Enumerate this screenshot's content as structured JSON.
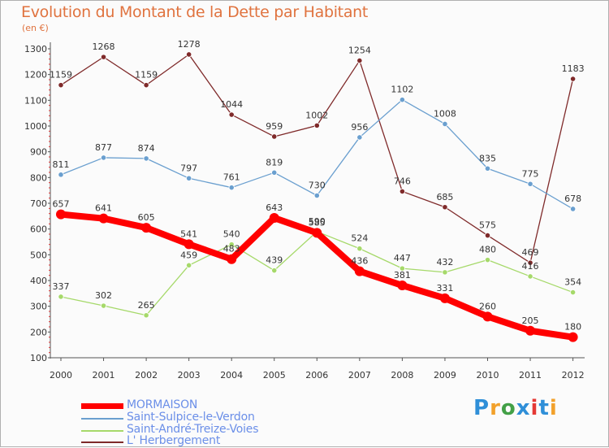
{
  "title": "Evolution du Montant de la Dette par Habitant",
  "unit": "(en €)",
  "logo": {
    "text": "Proxiti",
    "colors": [
      "#2f8fd8",
      "#f2a12b",
      "#43a047",
      "#2f8fd8",
      "#e53935",
      "#2f8fd8",
      "#f2a12b"
    ]
  },
  "chart_data": {
    "type": "line",
    "x": [
      "2000",
      "2001",
      "2002",
      "2003",
      "2004",
      "2005",
      "2006",
      "2007",
      "2008",
      "2009",
      "2010",
      "2011",
      "2012"
    ],
    "ylim": [
      100,
      1300
    ],
    "yticks": [
      100,
      200,
      300,
      400,
      500,
      600,
      700,
      800,
      900,
      1000,
      1100,
      1200,
      1300
    ],
    "grid": false,
    "legend_position": "bottom-left",
    "series": [
      {
        "name": "MORMAISON",
        "color": "#ff0000",
        "values": [
          657,
          641,
          605,
          541,
          483,
          643,
          585,
          436,
          381,
          331,
          260,
          205,
          180
        ]
      },
      {
        "name": "Saint-Sulpice-le-Verdon",
        "color": "#6a9fcf",
        "values": [
          811,
          877,
          874,
          797,
          761,
          819,
          730,
          956,
          1102,
          1008,
          835,
          775,
          678
        ]
      },
      {
        "name": "Saint-André-Treize-Voies",
        "color": "#a6d96a",
        "values": [
          337,
          302,
          265,
          459,
          540,
          439,
          590,
          524,
          447,
          432,
          480,
          416,
          354
        ]
      },
      {
        "name": "L' Herbergement",
        "color": "#7f2a2a",
        "values": [
          1159,
          1268,
          1159,
          1278,
          1044,
          959,
          1002,
          1254,
          746,
          685,
          575,
          469,
          1183
        ]
      }
    ]
  }
}
